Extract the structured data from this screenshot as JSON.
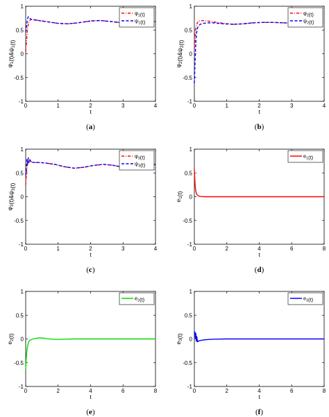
{
  "chart_data": [
    {
      "type": "line",
      "caption": "(a)",
      "xlabel": "t",
      "ylabel": "φ1(t)&ψ1(t)",
      "xlim": [
        0,
        4
      ],
      "ylim": [
        -1,
        1
      ],
      "xticks": [
        "0",
        "1",
        "2",
        "3",
        "4"
      ],
      "yticks": [
        "-1",
        "-0.5",
        "0",
        "0.5",
        "1"
      ],
      "legend_position": "top-right",
      "series": [
        {
          "name": "φ1(t)",
          "color": "#ff0000",
          "dash": "dashdot",
          "x": [
            0,
            0.03,
            0.06,
            0.1,
            0.15,
            0.25,
            0.5,
            0.8,
            1.0,
            1.3,
            1.6,
            2.0,
            2.3,
            2.6,
            3.0,
            3.3,
            3.6,
            4.0
          ],
          "y": [
            0.05,
            0.3,
            0.55,
            0.68,
            0.72,
            0.72,
            0.69,
            0.66,
            0.64,
            0.63,
            0.65,
            0.69,
            0.7,
            0.68,
            0.65,
            0.64,
            0.66,
            0.68
          ]
        },
        {
          "name": "ψ1(t)",
          "color": "#0000ff",
          "dash": "dashed",
          "x": [
            0,
            0.02,
            0.05,
            0.08,
            0.12,
            0.18,
            0.3,
            0.5,
            0.8,
            1.0,
            1.3,
            1.6,
            2.0,
            2.3,
            2.6,
            3.0,
            3.3,
            3.6,
            4.0
          ],
          "y": [
            0.45,
            0.55,
            0.72,
            0.78,
            0.75,
            0.72,
            0.71,
            0.69,
            0.66,
            0.64,
            0.63,
            0.65,
            0.69,
            0.7,
            0.68,
            0.65,
            0.64,
            0.66,
            0.68
          ]
        }
      ]
    },
    {
      "type": "line",
      "caption": "(b)",
      "xlabel": "t",
      "ylabel": "φ2(t)&ψ2(t)",
      "xlim": [
        0,
        4
      ],
      "ylim": [
        -1,
        1
      ],
      "xticks": [
        "0",
        "1",
        "2",
        "3",
        "4"
      ],
      "yticks": [
        "-1",
        "-0.5",
        "0",
        "0.5",
        "1"
      ],
      "legend_position": "top-right",
      "series": [
        {
          "name": "φ2(t)",
          "color": "#ff0000",
          "dash": "dashdot",
          "x": [
            0,
            0.03,
            0.06,
            0.1,
            0.15,
            0.25,
            0.4,
            0.6,
            0.9,
            1.2,
            1.5,
            1.8,
            2.1,
            2.4,
            2.8,
            3.2,
            3.6,
            4.0
          ],
          "y": [
            0.1,
            0.45,
            0.6,
            0.66,
            0.69,
            0.7,
            0.69,
            0.67,
            0.64,
            0.62,
            0.63,
            0.65,
            0.66,
            0.66,
            0.65,
            0.64,
            0.65,
            0.66
          ]
        },
        {
          "name": "ψ2(t)",
          "color": "#0000ff",
          "dash": "dashed",
          "x": [
            0,
            0.02,
            0.05,
            0.08,
            0.12,
            0.18,
            0.28,
            0.4,
            0.6,
            0.9,
            1.2,
            1.5,
            1.8,
            2.1,
            2.4,
            2.8,
            3.2,
            3.6,
            4.0
          ],
          "y": [
            -0.62,
            -0.2,
            0.3,
            0.5,
            0.58,
            0.62,
            0.64,
            0.65,
            0.65,
            0.63,
            0.62,
            0.63,
            0.65,
            0.66,
            0.66,
            0.65,
            0.64,
            0.65,
            0.66
          ]
        }
      ]
    },
    {
      "type": "line",
      "caption": "(c)",
      "xlabel": "t",
      "ylabel": "φ3(t)&ψ3(t)",
      "xlim": [
        0,
        4
      ],
      "ylim": [
        -1,
        1
      ],
      "xticks": [
        "0",
        "1",
        "2",
        "3",
        "4"
      ],
      "yticks": [
        "-1",
        "-0.5",
        "0",
        "0.5",
        "1"
      ],
      "legend_position": "top-right",
      "series": [
        {
          "name": "φ3(t)",
          "color": "#ff0000",
          "dash": "dashdot",
          "x": [
            0,
            0.03,
            0.06,
            0.1,
            0.15,
            0.25,
            0.4,
            0.6,
            0.9,
            1.2,
            1.5,
            1.8,
            2.1,
            2.4,
            2.7,
            3.0,
            3.3,
            3.6,
            4.0
          ],
          "y": [
            0.25,
            0.55,
            0.7,
            0.76,
            0.74,
            0.72,
            0.72,
            0.71,
            0.68,
            0.63,
            0.6,
            0.62,
            0.66,
            0.68,
            0.66,
            0.62,
            0.62,
            0.66,
            0.68
          ]
        },
        {
          "name": "ψ3(t)",
          "color": "#0000ff",
          "dash": "dashed",
          "x": [
            0,
            0.02,
            0.04,
            0.06,
            0.08,
            0.1,
            0.13,
            0.17,
            0.25,
            0.4,
            0.6,
            0.9,
            1.2,
            1.5,
            1.8,
            2.1,
            2.4,
            2.7,
            3.0,
            3.3,
            3.6,
            4.0
          ],
          "y": [
            0.45,
            0.62,
            0.8,
            0.68,
            0.82,
            0.72,
            0.78,
            0.73,
            0.72,
            0.72,
            0.71,
            0.68,
            0.63,
            0.6,
            0.62,
            0.66,
            0.68,
            0.66,
            0.62,
            0.62,
            0.66,
            0.68
          ]
        }
      ]
    },
    {
      "type": "line",
      "caption": "(d)",
      "xlabel": "t",
      "ylabel": "e1(t)",
      "xlim": [
        0,
        8
      ],
      "ylim": [
        -1,
        1
      ],
      "xticks": [
        "0",
        "2",
        "4",
        "6",
        "8"
      ],
      "yticks": [
        "-1",
        "-0.5",
        "0",
        "0.5",
        "1"
      ],
      "legend_position": "top-right",
      "series": [
        {
          "name": "e1(t)",
          "color": "#ff0000",
          "dash": "solid",
          "x": [
            0,
            0.03,
            0.06,
            0.1,
            0.15,
            0.2,
            0.3,
            0.4,
            0.6,
            1.0,
            2.0,
            4.0,
            6.0,
            8.0
          ],
          "y": [
            0.58,
            0.35,
            0.2,
            0.1,
            0.05,
            0.03,
            0.01,
            0.005,
            0,
            0,
            0,
            0,
            0,
            0
          ]
        }
      ]
    },
    {
      "type": "line",
      "caption": "(e)",
      "xlabel": "t",
      "ylabel": "e2(t)",
      "xlim": [
        0,
        8
      ],
      "ylim": [
        -1,
        1
      ],
      "xticks": [
        "0",
        "2",
        "4",
        "6",
        "8"
      ],
      "yticks": [
        "-1",
        "-0.5",
        "0",
        "0.5",
        "1"
      ],
      "legend_position": "top-right",
      "series": [
        {
          "name": "e2(t)",
          "color": "#00dd00",
          "dash": "solid",
          "x": [
            0,
            0.03,
            0.06,
            0.1,
            0.15,
            0.2,
            0.3,
            0.45,
            0.6,
            0.8,
            1.0,
            1.3,
            1.6,
            2.0,
            2.5,
            3.0,
            4.0,
            6.0,
            8.0
          ],
          "y": [
            -0.65,
            -0.45,
            -0.3,
            -0.18,
            -0.1,
            -0.05,
            -0.02,
            0,
            0.01,
            0.02,
            0.02,
            0.005,
            -0.005,
            -0.01,
            -0.005,
            0,
            0,
            0,
            0
          ]
        }
      ]
    },
    {
      "type": "line",
      "caption": "(f)",
      "xlabel": "t",
      "ylabel": "e3(t)",
      "xlim": [
        0,
        8
      ],
      "ylim": [
        -1,
        1
      ],
      "xticks": [
        "0",
        "2",
        "4",
        "6",
        "8"
      ],
      "yticks": [
        "-1",
        "-0.5",
        "0",
        "0.5",
        "1"
      ],
      "legend_position": "top-right",
      "series": [
        {
          "name": "e3(t)",
          "color": "#0000ff",
          "dash": "solid",
          "x": [
            0,
            0.03,
            0.06,
            0.09,
            0.12,
            0.15,
            0.2,
            0.28,
            0.4,
            0.6,
            0.9,
            1.3,
            2.0,
            3.0,
            4.0,
            6.0,
            8.0
          ],
          "y": [
            0.1,
            0.15,
            0.02,
            0.12,
            -0.05,
            0.05,
            -0.06,
            -0.04,
            -0.03,
            -0.02,
            -0.01,
            -0.005,
            0,
            0,
            0,
            0,
            0
          ]
        }
      ]
    }
  ]
}
